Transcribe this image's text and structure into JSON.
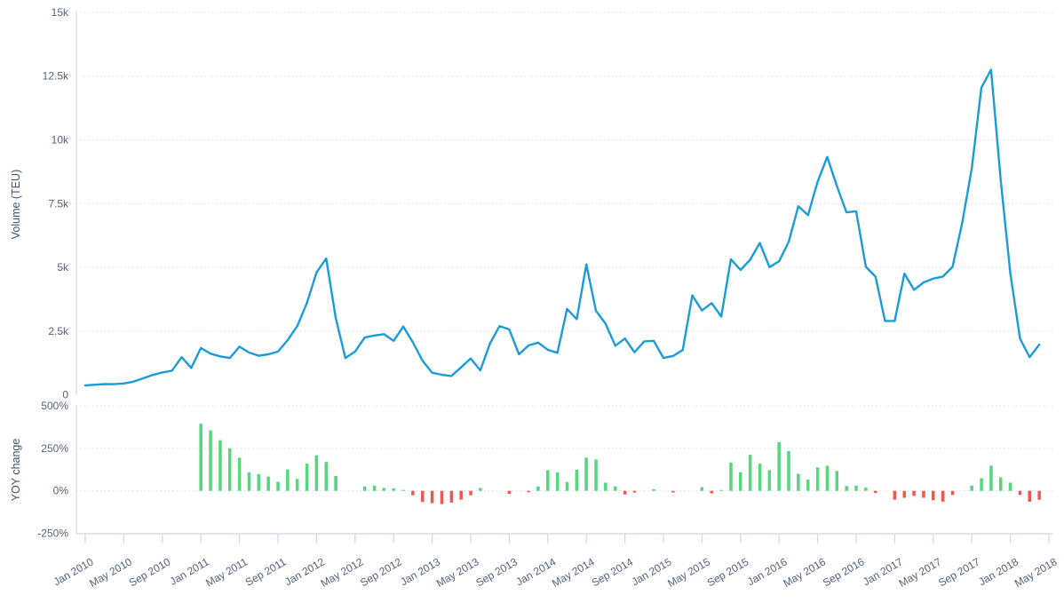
{
  "colors": {
    "line": "#1b9cd8",
    "bar_positive": "#54d77d",
    "bar_negative": "#f3564c",
    "gridline": "#dcdcdc",
    "axis_line": "#d9dde3",
    "tick_mark": "#ccd6eb",
    "label_text": "#53627c"
  },
  "x_axis": {
    "rotation_deg": -30,
    "tick_labels": [
      "Jan 2010",
      "May 2010",
      "Sep 2010",
      "Jan 2011",
      "May 2011",
      "Sep 2011",
      "Jan 2012",
      "May 2012",
      "Sep 2012",
      "Jan 2013",
      "May 2013",
      "Sep 2013",
      "Jan 2014",
      "May 2014",
      "Sep 2014",
      "Jan 2015",
      "May 2015",
      "Sep 2015",
      "Jan 2016",
      "May 2016",
      "Sep 2016",
      "Jan 2017",
      "May 2017",
      "Sep 2017",
      "Jan 2018",
      "May 2018"
    ]
  },
  "chart_data": [
    {
      "type": "line",
      "panel": "top",
      "ylabel": "Volume (TEU)",
      "x_start": "Jan 2010",
      "x_end": "Apr 2018",
      "x_frequency": "monthly",
      "ylim": [
        0,
        15000
      ],
      "grid": "horizontal dotted",
      "yticks": [
        [
          0,
          "0"
        ],
        [
          2500,
          "2.5k"
        ],
        [
          5000,
          "5k"
        ],
        [
          7500,
          "7.5k"
        ],
        [
          10000,
          "10k"
        ],
        [
          12500,
          "12.5k"
        ],
        [
          15000,
          "15k"
        ]
      ],
      "series": [
        {
          "name": "Volume (TEU)",
          "values": [
            370,
            400,
            430,
            420,
            450,
            520,
            650,
            780,
            880,
            950,
            1480,
            1060,
            1840,
            1620,
            1510,
            1450,
            1890,
            1660,
            1540,
            1590,
            1700,
            2150,
            2700,
            3600,
            4800,
            5350,
            3000,
            1450,
            1700,
            2250,
            2330,
            2380,
            2120,
            2680,
            2060,
            1340,
            870,
            790,
            740,
            1080,
            1430,
            960,
            2020,
            2700,
            2570,
            1590,
            1940,
            2050,
            1770,
            1650,
            3370,
            2970,
            5120,
            3300,
            2790,
            1930,
            2210,
            1670,
            2100,
            2120,
            1450,
            1530,
            1760,
            3900,
            3310,
            3600,
            3070,
            5320,
            4900,
            5300,
            5960,
            5010,
            5240,
            6000,
            7400,
            7050,
            8360,
            9330,
            8190,
            7160,
            7200,
            5020,
            4640,
            2900,
            2900,
            4760,
            4120,
            4410,
            4560,
            4640,
            5020,
            6730,
            8890,
            12050,
            12750,
            8400,
            4760,
            2200,
            1480,
            1970
          ]
        }
      ]
    },
    {
      "type": "bar",
      "panel": "bottom",
      "ylabel": "YOY change",
      "x_start": "Jan 2011",
      "x_end": "Apr 2018",
      "x_frequency": "monthly",
      "ylim": [
        -250,
        500
      ],
      "grid": "horizontal dotted",
      "yticks": [
        [
          500,
          "500%"
        ],
        [
          250,
          "250%"
        ],
        [
          0,
          "0%"
        ],
        [
          -250,
          "-250%"
        ]
      ],
      "positive_color": "#54d77d",
      "negative_color": "#f3564c",
      "series": [
        {
          "name": "YOY change (%)",
          "values": [
            395,
            356,
            298,
            249,
            195,
            109,
            98,
            84,
            53,
            126,
            70,
            160,
            209,
            170,
            88,
            0,
            0,
            26,
            31,
            17,
            14,
            5,
            -26,
            -66,
            -72,
            -78,
            -69,
            -52,
            -26,
            17,
            0,
            0,
            -17,
            0,
            -8,
            26,
            121,
            109,
            52,
            124,
            195,
            184,
            48,
            26,
            -21,
            -10,
            0,
            9,
            0,
            -10,
            0,
            0,
            22,
            -15,
            5,
            166,
            109,
            212,
            160,
            121,
            286,
            234,
            100,
            66,
            138,
            148,
            117,
            28,
            31,
            19,
            -12,
            0,
            -52,
            -41,
            -29,
            -41,
            -55,
            -64,
            -24,
            0,
            31,
            74,
            148,
            79,
            48,
            -24,
            -64,
            -52
          ]
        }
      ]
    }
  ]
}
